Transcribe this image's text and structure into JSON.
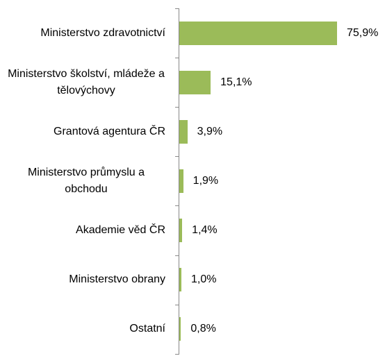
{
  "chart_data": {
    "type": "bar",
    "orientation": "horizontal",
    "color": "#9bbb59",
    "categories": [
      "Ministerstvo zdravotnictví",
      "Ministerstvo školství, mládeže a tělovýchovy",
      "Grantová agentura ČR",
      "Ministerstvo průmyslu a obchodu",
      "Akademie věd ČR",
      "Ministerstvo obrany",
      "Ostatní"
    ],
    "values": [
      75.9,
      15.1,
      3.9,
      1.9,
      1.4,
      1.0,
      0.8
    ],
    "value_labels": [
      "75,9%",
      "15,1%",
      "3,9%",
      "1,9%",
      "1,4%",
      "1,0%",
      "0,8%"
    ]
  }
}
